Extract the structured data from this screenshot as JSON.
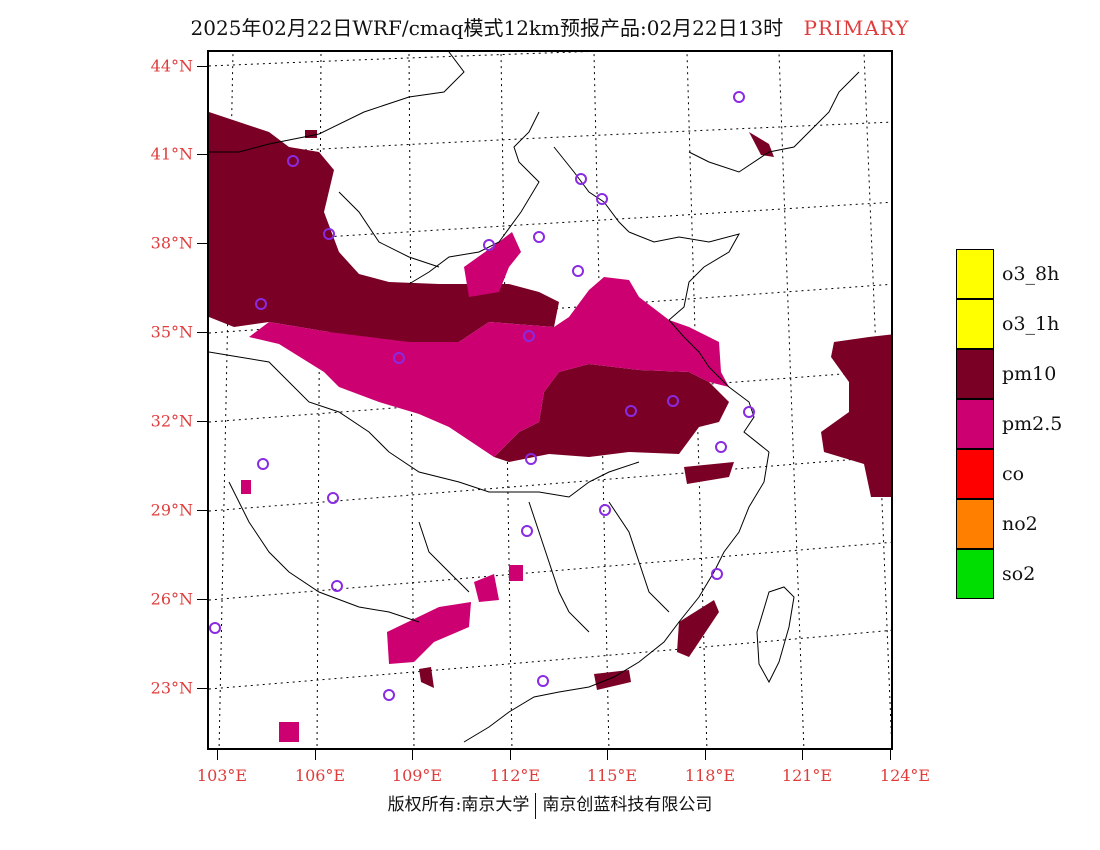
{
  "title": {
    "main": "2025年02月22日WRF/cmaq模式12km预报产品:02月22日13时",
    "tag": "PRIMARY"
  },
  "axes": {
    "lat_labels": [
      "44°N",
      "41°N",
      "38°N",
      "35°N",
      "32°N",
      "29°N",
      "26°N",
      "23°N"
    ],
    "lon_labels": [
      "103°E",
      "106°E",
      "109°E",
      "112°E",
      "115°E",
      "118°E",
      "121°E",
      "124°E"
    ]
  },
  "legend": {
    "items": [
      {
        "label": "o3_8h",
        "color": "#ffff00"
      },
      {
        "label": "o3_1h",
        "color": "#ffff00"
      },
      {
        "label": "pm10",
        "color": "#7a0026"
      },
      {
        "label": "pm2.5",
        "color": "#cc0070"
      },
      {
        "label": "co",
        "color": "#ff0000"
      },
      {
        "label": "no2",
        "color": "#ff7f00"
      },
      {
        "label": "so2",
        "color": "#00dd00"
      }
    ]
  },
  "colors": {
    "pm10": "#7a0026",
    "pm25": "#cc0070",
    "station_marker": "#8a2be2",
    "label_accent": "#e03c3c"
  },
  "footer": {
    "left": "版权所有:南京大学",
    "right": "南京创蓝科技有限公司"
  }
}
